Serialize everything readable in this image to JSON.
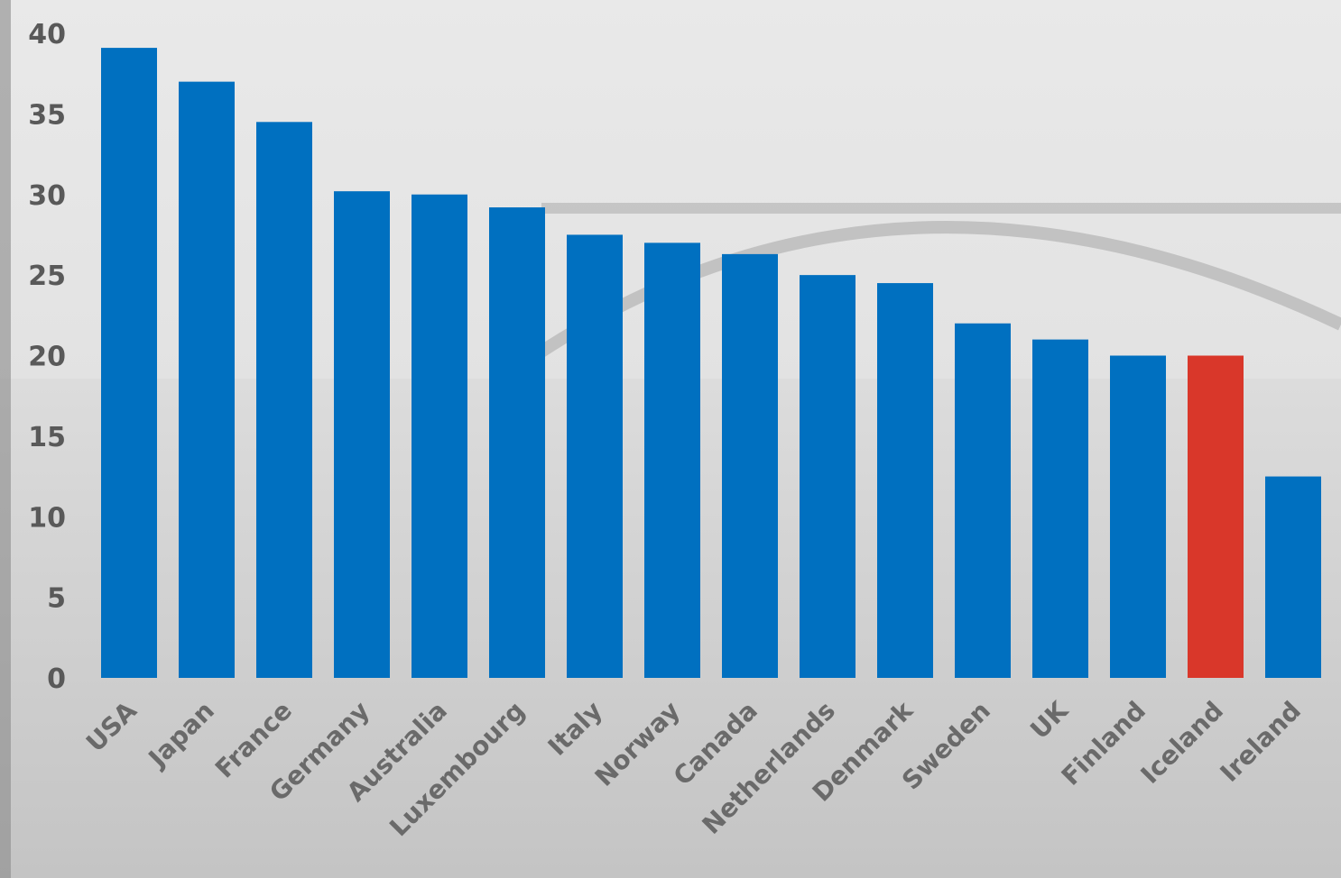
{
  "colors": {
    "bar": "#0070c0",
    "highlight": "#d9372a",
    "background": "#d6d6d6"
  },
  "chart_data": {
    "type": "bar",
    "title": "",
    "xlabel": "",
    "ylabel": "",
    "ylim": [
      0,
      40
    ],
    "yticks": [
      0,
      5,
      10,
      15,
      20,
      25,
      30,
      35,
      40
    ],
    "grid": false,
    "legend": "none",
    "highlight_category": "Iceland",
    "categories": [
      "USA",
      "Japan",
      "France",
      "Germany",
      "Australia",
      "Luxembourg",
      "Italy",
      "Norway",
      "Canada",
      "Netherlands",
      "Denmark",
      "Sweden",
      "UK",
      "Finland",
      "Iceland",
      "Ireland"
    ],
    "values": [
      39.1,
      37.0,
      34.5,
      30.2,
      30.0,
      29.2,
      27.5,
      27.0,
      26.3,
      25.0,
      24.5,
      22.0,
      21.0,
      20.0,
      20.0,
      12.5
    ]
  }
}
